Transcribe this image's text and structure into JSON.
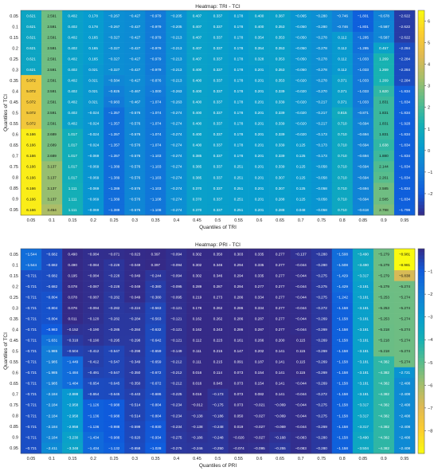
{
  "chart_data": [
    {
      "type": "heatmap",
      "title": "Heatmap: TRI - TCI",
      "xlabel": "Quantiles of TRI",
      "ylabel": "Quantiles of TCI",
      "x_ticks": [
        "0.05",
        "0.1",
        "0.15",
        "0.2",
        "0.25",
        "0.3",
        "0.35",
        "0.4",
        "0.45",
        "0.5",
        "0.55",
        "0.6",
        "0.65",
        "0.7",
        "0.75",
        "0.8",
        "0.85",
        "0.9",
        "0.95"
      ],
      "y_ticks": [
        "0.05",
        "0.1",
        "0.15",
        "0.2",
        "0.25",
        "0.3",
        "0.35",
        "0.4",
        "0.45",
        "0.5",
        "0.55",
        "0.6",
        "0.65",
        "0.7",
        "0.75",
        "0.8",
        "0.85",
        "0.9",
        "0.95"
      ],
      "colorbar_ticks": [
        "6",
        "5",
        "4",
        "3",
        "2",
        "1",
        "0",
        "-1",
        "-2"
      ],
      "zlim": [
        -3,
        6.5
      ],
      "colormap": "parula",
      "values": [
        [
          0.621,
          2.591,
          0.402,
          0.178,
          -0.267,
          -0.427,
          -0.979,
          -0.205,
          0.407,
          0.337,
          0.178,
          0.4,
          0.387,
          -0.065,
          -0.28,
          -0.746,
          -1.801,
          -0.678,
          -2.622
        ],
        [
          0.621,
          2.591,
          0.402,
          0.178,
          -0.267,
          -0.427,
          -0.979,
          -0.205,
          0.407,
          0.337,
          0.178,
          0.4,
          0.353,
          -0.05,
          -0.28,
          -0.746,
          -1.801,
          -0.587,
          -2.622
        ],
        [
          0.621,
          2.591,
          0.402,
          0.165,
          -0.327,
          -0.427,
          -0.979,
          -0.213,
          0.407,
          0.337,
          0.178,
          0.354,
          0.353,
          -0.05,
          -0.278,
          0.112,
          -1.285,
          -0.587,
          -2.622
        ],
        [
          0.621,
          2.591,
          0.402,
          0.165,
          -0.327,
          -0.427,
          -0.979,
          -0.213,
          0.407,
          0.337,
          0.178,
          0.354,
          0.353,
          -0.05,
          -0.278,
          0.112,
          -1.285,
          0.457,
          -2.284
        ],
        [
          0.621,
          2.591,
          0.402,
          0.165,
          -0.327,
          -0.427,
          -0.979,
          -0.213,
          0.407,
          0.337,
          0.178,
          0.328,
          0.353,
          -0.05,
          -0.278,
          0.112,
          -1.033,
          1.269,
          -2.284
        ],
        [
          0.621,
          2.591,
          0.402,
          0.021,
          -0.327,
          -0.427,
          -0.979,
          -0.213,
          0.4,
          0.337,
          0.178,
          0.201,
          0.353,
          -0.05,
          -0.278,
          0.112,
          -1.033,
          1.269,
          -2.284
        ],
        [
          5.072,
          2.591,
          0.402,
          0.021,
          -0.584,
          -0.427,
          -0.876,
          -0.213,
          0.4,
          0.337,
          0.178,
          0.201,
          0.353,
          -0.02,
          -0.278,
          0.371,
          -1.033,
          1.269,
          -2.284
        ],
        [
          5.072,
          2.591,
          0.402,
          0.021,
          -0.825,
          -0.467,
          -1.0,
          -0.263,
          0.4,
          0.337,
          0.178,
          0.201,
          0.339,
          -0.02,
          -0.27,
          0.371,
          -1.033,
          1.62,
          -1.834
        ],
        [
          5.072,
          2.591,
          0.402,
          0.021,
          -0.983,
          -0.467,
          -1.074,
          -0.263,
          0.4,
          0.337,
          0.178,
          0.201,
          0.339,
          -0.02,
          -0.217,
          0.371,
          -1.033,
          1.831,
          -1.834
        ],
        [
          5.072,
          2.591,
          0.402,
          -0.024,
          -1.357,
          -0.576,
          -1.074,
          -0.274,
          0.4,
          0.337,
          0.178,
          0.201,
          0.339,
          -0.02,
          -0.217,
          0.815,
          -0.871,
          1.831,
          -1.834
        ],
        [
          5.072,
          2.591,
          0.402,
          -0.024,
          -1.357,
          -0.576,
          -1.074,
          -0.274,
          0.4,
          0.337,
          0.178,
          0.201,
          0.339,
          -0.02,
          -0.217,
          0.71,
          -0.694,
          1.831,
          -1.928
        ],
        [
          6.166,
          2.689,
          1.017,
          -0.024,
          -1.357,
          -0.576,
          -1.074,
          -0.274,
          0.4,
          0.337,
          0.178,
          0.201,
          0.339,
          -0.02,
          -0.173,
          0.71,
          -0.694,
          1.831,
          -1.834
        ],
        [
          6.166,
          2.689,
          1.017,
          -0.024,
          -1.357,
          -0.576,
          -1.074,
          -0.274,
          0.4,
          0.337,
          0.178,
          0.201,
          0.339,
          0.125,
          -0.173,
          0.71,
          -0.694,
          1.638,
          -1.834
        ],
        [
          6.166,
          2.689,
          1.017,
          -0.069,
          -1.357,
          -0.576,
          -1.103,
          -0.274,
          0.385,
          0.337,
          0.178,
          0.201,
          0.339,
          0.125,
          -0.173,
          0.71,
          -0.694,
          1.88,
          -1.834
        ],
        [
          6.166,
          3.137,
          1.017,
          -0.069,
          -1.389,
          -0.576,
          -1.103,
          -0.274,
          0.385,
          0.337,
          0.251,
          0.201,
          0.339,
          0.125,
          -0.058,
          0.71,
          -0.694,
          2.144,
          -1.834
        ],
        [
          6.166,
          3.137,
          1.017,
          -0.069,
          -1.389,
          -0.576,
          -1.103,
          -0.274,
          0.385,
          0.337,
          0.251,
          0.201,
          0.307,
          0.125,
          -0.058,
          0.71,
          -0.694,
          2.261,
          -1.834
        ],
        [
          6.166,
          3.137,
          1.111,
          -0.069,
          -1.389,
          -0.576,
          -1.103,
          -0.274,
          0.37,
          0.337,
          0.251,
          0.201,
          0.307,
          0.125,
          -0.058,
          0.71,
          -0.694,
          2.585,
          -1.834
        ],
        [
          6.166,
          3.137,
          1.111,
          -0.069,
          -1.389,
          -0.576,
          -1.108,
          -0.274,
          0.37,
          0.337,
          0.251,
          0.201,
          0.288,
          0.125,
          -0.058,
          0.71,
          -0.694,
          2.585,
          -1.834
        ],
        [
          6.166,
          3.454,
          1.111,
          -0.069,
          -1.389,
          -0.576,
          -1.108,
          -0.274,
          0.37,
          0.337,
          0.251,
          0.201,
          0.288,
          0.048,
          -0.058,
          0.71,
          -0.618,
          2.798,
          -1.799
        ]
      ]
    },
    {
      "type": "heatmap",
      "title": "Heatmap: PRI - TCI",
      "xlabel": "Quantiles of PRI",
      "ylabel": "Quantiles of TCI",
      "x_ticks": [
        "0.05",
        "0.1",
        "0.15",
        "0.2",
        "0.25",
        "0.3",
        "0.35",
        "0.4",
        "0.45",
        "0.5",
        "0.55",
        "0.6",
        "0.65",
        "0.7",
        "0.75",
        "0.8",
        "0.85",
        "0.9",
        "0.95"
      ],
      "y_ticks": [
        "0.05",
        "0.1",
        "0.15",
        "0.2",
        "0.25",
        "0.3",
        "0.35",
        "0.4",
        "0.45",
        "0.5",
        "0.55",
        "0.6",
        "0.65",
        "0.7",
        "0.75",
        "0.8",
        "0.85",
        "0.9",
        "0.95"
      ],
      "colorbar_ticks": [
        "-1",
        "-2",
        "-3",
        "-4",
        "-5",
        "-6",
        "-7",
        "-8"
      ],
      "zlim": [
        -9,
        0
      ],
      "colormap": "parula_reversed",
      "values": [
        [
          -1.544,
          -0.682,
          0.49,
          -0.084,
          -0.071,
          -0.023,
          0.397,
          -0.094,
          0.302,
          0.35,
          0.303,
          0.335,
          0.277,
          -0.137,
          -0.28,
          -1.508,
          -3.49,
          -5.279,
          -8.981
        ],
        [
          -1.544,
          -0.682,
          0.49,
          -0.084,
          -0.228,
          -0.049,
          0.397,
          -0.094,
          0.302,
          0.346,
          0.294,
          0.335,
          0.277,
          -0.044,
          -0.28,
          -1.508,
          -3.49,
          -5.279,
          -8.981
        ],
        [
          -0.721,
          -0.682,
          0.195,
          -0.084,
          -0.228,
          -0.049,
          -0.244,
          -0.094,
          0.302,
          0.346,
          0.294,
          0.335,
          0.277,
          -0.044,
          -0.275,
          -1.429,
          -3.317,
          -5.279,
          -6.838
        ],
        [
          -0.721,
          -0.682,
          0.078,
          -0.087,
          -0.228,
          -0.049,
          -0.38,
          -0.095,
          0.289,
          0.287,
          0.294,
          0.277,
          0.277,
          -0.044,
          -0.275,
          -1.429,
          -3.181,
          -5.279,
          -5.274
        ],
        [
          -0.721,
          -0.804,
          0.078,
          -0.087,
          -0.282,
          -0.049,
          -0.38,
          -0.095,
          0.219,
          0.273,
          0.286,
          0.334,
          0.277,
          -0.044,
          -0.275,
          -1.242,
          -3.181,
          -5.253,
          -5.274
        ],
        [
          -0.721,
          -0.804,
          0.076,
          -0.094,
          -0.282,
          -0.224,
          -0.563,
          -0.121,
          0.178,
          0.262,
          0.286,
          0.334,
          0.277,
          -0.044,
          -0.272,
          -1.158,
          -3.181,
          -5.253,
          -5.274
        ],
        [
          -0.721,
          -0.804,
          0.011,
          -0.12,
          -0.282,
          -0.284,
          -0.563,
          -0.121,
          0.162,
          0.262,
          0.286,
          0.287,
          0.277,
          -0.044,
          -0.269,
          -1.158,
          -3.181,
          -5.253,
          -5.274
        ],
        [
          -0.721,
          -0.983,
          -0.152,
          -0.19,
          -0.285,
          -0.284,
          -0.632,
          -0.121,
          0.162,
          0.243,
          0.286,
          0.287,
          0.277,
          -0.044,
          -0.269,
          -1.158,
          -3.181,
          -5.218,
          -5.274
        ],
        [
          -0.721,
          -1.631,
          -0.318,
          -0.19,
          -0.295,
          -0.298,
          -0.642,
          -0.121,
          0.112,
          0.223,
          0.161,
          0.266,
          0.2,
          0.115,
          -0.269,
          -1.158,
          -3.181,
          -5.218,
          -5.274
        ],
        [
          -0.721,
          -1.985,
          -0.504,
          -0.412,
          -0.547,
          -0.298,
          -0.659,
          -0.149,
          0.111,
          0.215,
          0.147,
          0.202,
          0.141,
          0.115,
          -0.269,
          -1.158,
          -3.181,
          -5.218,
          -5.274
        ],
        [
          -0.721,
          -1.985,
          -1.449,
          -0.412,
          -0.547,
          -0.349,
          -0.659,
          -0.212,
          0.111,
          0.215,
          0.091,
          0.187,
          0.141,
          0.115,
          -0.269,
          -1.158,
          -3.181,
          -4.382,
          -5.274
        ],
        [
          -0.721,
          -1.985,
          -1.484,
          -0.491,
          -0.547,
          -0.35,
          -0.672,
          -0.212,
          0.016,
          0.114,
          0.073,
          0.154,
          0.141,
          0.115,
          -0.269,
          -1.158,
          -3.181,
          -4.382,
          -2.721
        ],
        [
          -0.721,
          -1.985,
          -1.484,
          -0.654,
          -0.645,
          -0.35,
          -0.672,
          -0.212,
          0.016,
          0.045,
          0.073,
          0.154,
          0.141,
          -0.044,
          -0.269,
          -1.158,
          -3.181,
          -4.382,
          -2.408
        ],
        [
          -0.721,
          -2.184,
          -2.888,
          -0.654,
          -0.645,
          -0.443,
          -0.686,
          -0.225,
          0.016,
          -0.173,
          0.073,
          0.082,
          0.141,
          -0.044,
          -0.272,
          -1.158,
          -3.181,
          -4.382,
          -2.408
        ],
        [
          -0.721,
          -2.184,
          -2.958,
          -1.126,
          -0.988,
          -0.514,
          -0.804,
          -0.234,
          -0.012,
          -0.175,
          0.073,
          -0.021,
          -0.069,
          -0.044,
          -0.275,
          -1.158,
          -3.317,
          -4.382,
          -2.408
        ],
        [
          -0.721,
          -2.184,
          -2.958,
          -1.136,
          -0.988,
          -0.514,
          -0.804,
          -0.234,
          -0.138,
          -0.186,
          0.05,
          -0.027,
          -0.069,
          -0.044,
          -0.275,
          -1.158,
          -3.317,
          -4.382,
          -2.408
        ],
        [
          -0.721,
          -2.184,
          -2.958,
          -1.136,
          -0.988,
          -0.599,
          -0.93,
          -0.234,
          -0.138,
          -0.248,
          0.019,
          -0.027,
          -0.069,
          -0.044,
          -0.269,
          -1.158,
          -3.317,
          -4.382,
          -2.408
        ],
        [
          -0.721,
          -2.184,
          -3.23,
          -1.434,
          -0.988,
          -0.62,
          -0.934,
          -0.275,
          -0.186,
          -0.248,
          -0.026,
          -0.027,
          -0.168,
          -0.083,
          -0.28,
          -1.158,
          -3.49,
          -4.382,
          -2.408
        ],
        [
          -0.721,
          -2.411,
          -3.348,
          -1.434,
          -1.132,
          -0.658,
          -1.028,
          -0.275,
          -0.246,
          -0.25,
          -0.074,
          -0.095,
          -0.255,
          -0.083,
          -0.28,
          -1.158,
          -3.504,
          -4.382,
          -2.408
        ]
      ]
    }
  ]
}
